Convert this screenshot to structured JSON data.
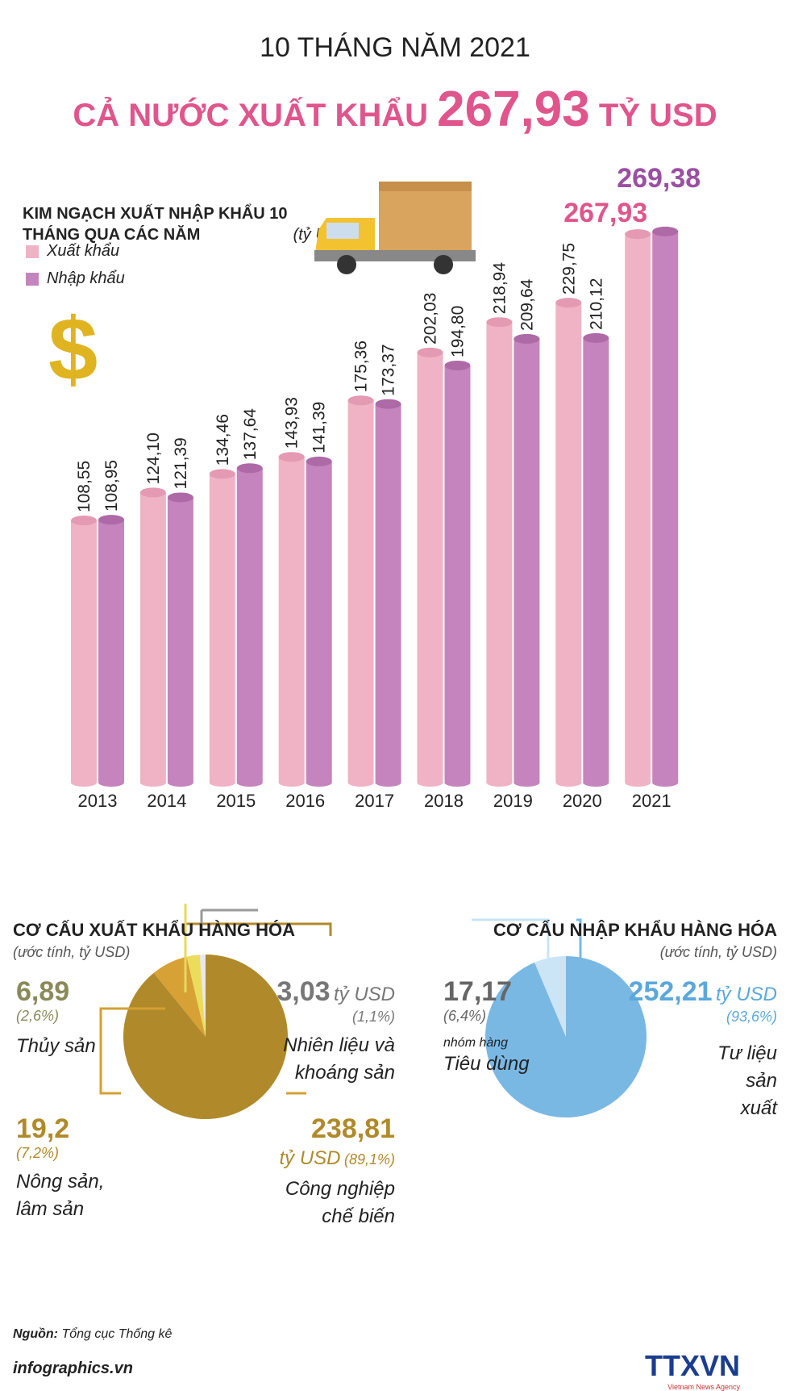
{
  "header": {
    "line1": "10 THÁNG NĂM 2021",
    "line2_prefix": "CẢ NƯỚC XUẤT KHẨU",
    "line2_value": "267,93",
    "line2_suffix": "TỶ USD"
  },
  "chart_data": [
    {
      "type": "bar",
      "title": "KIM NGẠCH XUẤT NHẬP KHẨU 10 THÁNG QUA CÁC NĂM",
      "unit": "(tỷ USD)",
      "categories": [
        "2013",
        "2014",
        "2015",
        "2016",
        "2017",
        "2018",
        "2019",
        "2020",
        "2021"
      ],
      "series": [
        {
          "name": "Xuất khẩu",
          "color": "#f0b3c6",
          "values": [
            108.55,
            124.1,
            134.46,
            143.93,
            175.36,
            202.03,
            218.94,
            229.75,
            267.93
          ],
          "labels": [
            "108,55",
            "124,10",
            "134,46",
            "143,93",
            "175,36",
            "202,03",
            "218,94",
            "229,75",
            "267,93"
          ]
        },
        {
          "name": "Nhập khẩu",
          "color": "#c584bd",
          "values": [
            108.95,
            121.39,
            137.64,
            141.39,
            173.37,
            194.8,
            209.64,
            210.12,
            269.38
          ],
          "labels": [
            "108,95",
            "121,39",
            "137,64",
            "141,39",
            "173,37",
            "194,80",
            "209,64",
            "210,12",
            "269,38"
          ]
        }
      ],
      "highlight_colors": {
        "export": "#e0558c",
        "import": "#9b4fa3"
      }
    },
    {
      "type": "pie",
      "title": "CƠ CẤU XUẤT KHẨU HÀNG HÓA",
      "subtitle": "(ước tính, tỷ USD)",
      "slices": [
        {
          "label": "Nhiên liệu và khoáng sản",
          "value": 3.03,
          "value_label": "3,03",
          "unit": "tỷ USD",
          "percent": "(1,1%)",
          "color": "#e8e8ee"
        },
        {
          "label": "Thủy sản",
          "value": 6.89,
          "value_label": "6,89",
          "percent": "(2,6%)",
          "color": "#ebdc5c"
        },
        {
          "label": "Nông sản, lâm sản",
          "value": 19.2,
          "value_label": "19,2",
          "percent": "(7,2%)",
          "color": "#d7a136"
        },
        {
          "label": "Công nghiệp chế biến",
          "value": 238.81,
          "value_label": "238,81",
          "unit": "tỷ USD",
          "percent": "(89,1%)",
          "color": "#b08a2a"
        }
      ]
    },
    {
      "type": "pie",
      "title": "CƠ CẤU NHẬP KHẨU HÀNG HÓA",
      "subtitle": "(ước tính, tỷ USD)",
      "slices": [
        {
          "label_pre": "nhóm hàng",
          "label": "Tiêu dùng",
          "value": 17.17,
          "value_label": "17,17",
          "percent": "(6,4%)",
          "color": "#cbe5f6"
        },
        {
          "label": "Tư liệu sản xuất",
          "value": 252.21,
          "value_label": "252,21",
          "unit": "tỷ USD",
          "percent": "(93,6%)",
          "color": "#7ab8e4"
        }
      ]
    }
  ],
  "footer": {
    "source_label": "Nguồn:",
    "source": "Tổng cục Thống kê",
    "site": "infographics.vn",
    "logo": "TTXVN",
    "logo_sub": "Vietnam News Agency"
  }
}
